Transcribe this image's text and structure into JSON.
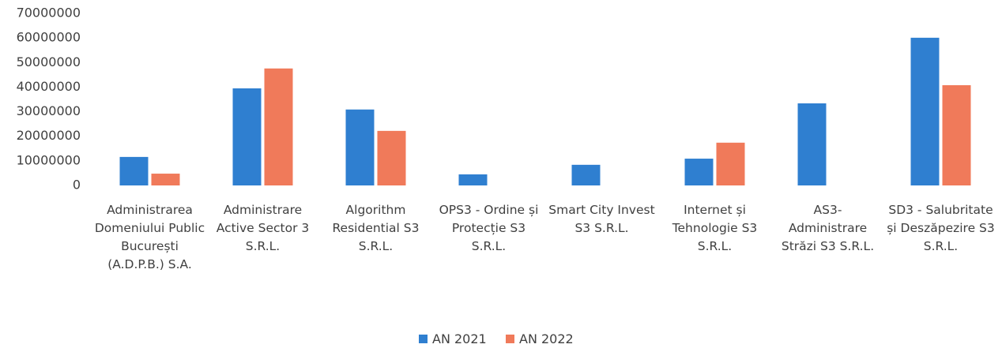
{
  "chart_data": {
    "type": "bar",
    "categories": [
      "Administrarea Domeniului Public București (A.D.P.B.) S.A.",
      "Administrare Active Sector 3 S.R.L.",
      "Algorithm Residential S3 S.R.L.",
      "OPS3 - Ordine și Protecție S3 S.R.L.",
      "Smart City Invest S3 S.R.L.",
      "Internet și Tehnologie S3 S.R.L.",
      "AS3- Administrare Străzi S3 S.R.L.",
      "SD3 - Salubritate și Deszăpezire S3 S.R.L."
    ],
    "series": [
      {
        "name": "AN 2021",
        "color": "#2f7fd0",
        "values": [
          11600000,
          39500000,
          30900000,
          4500000,
          8400000,
          10900000,
          33400000,
          60100000
        ]
      },
      {
        "name": "AN 2022",
        "color": "#f07a5a",
        "values": [
          4800000,
          47600000,
          22200000,
          null,
          null,
          17400000,
          null,
          40800000
        ]
      }
    ],
    "ylim": [
      0,
      70000000
    ],
    "yticks": [
      0,
      10000000,
      20000000,
      30000000,
      40000000,
      50000000,
      60000000,
      70000000
    ],
    "legend": "bottom"
  }
}
